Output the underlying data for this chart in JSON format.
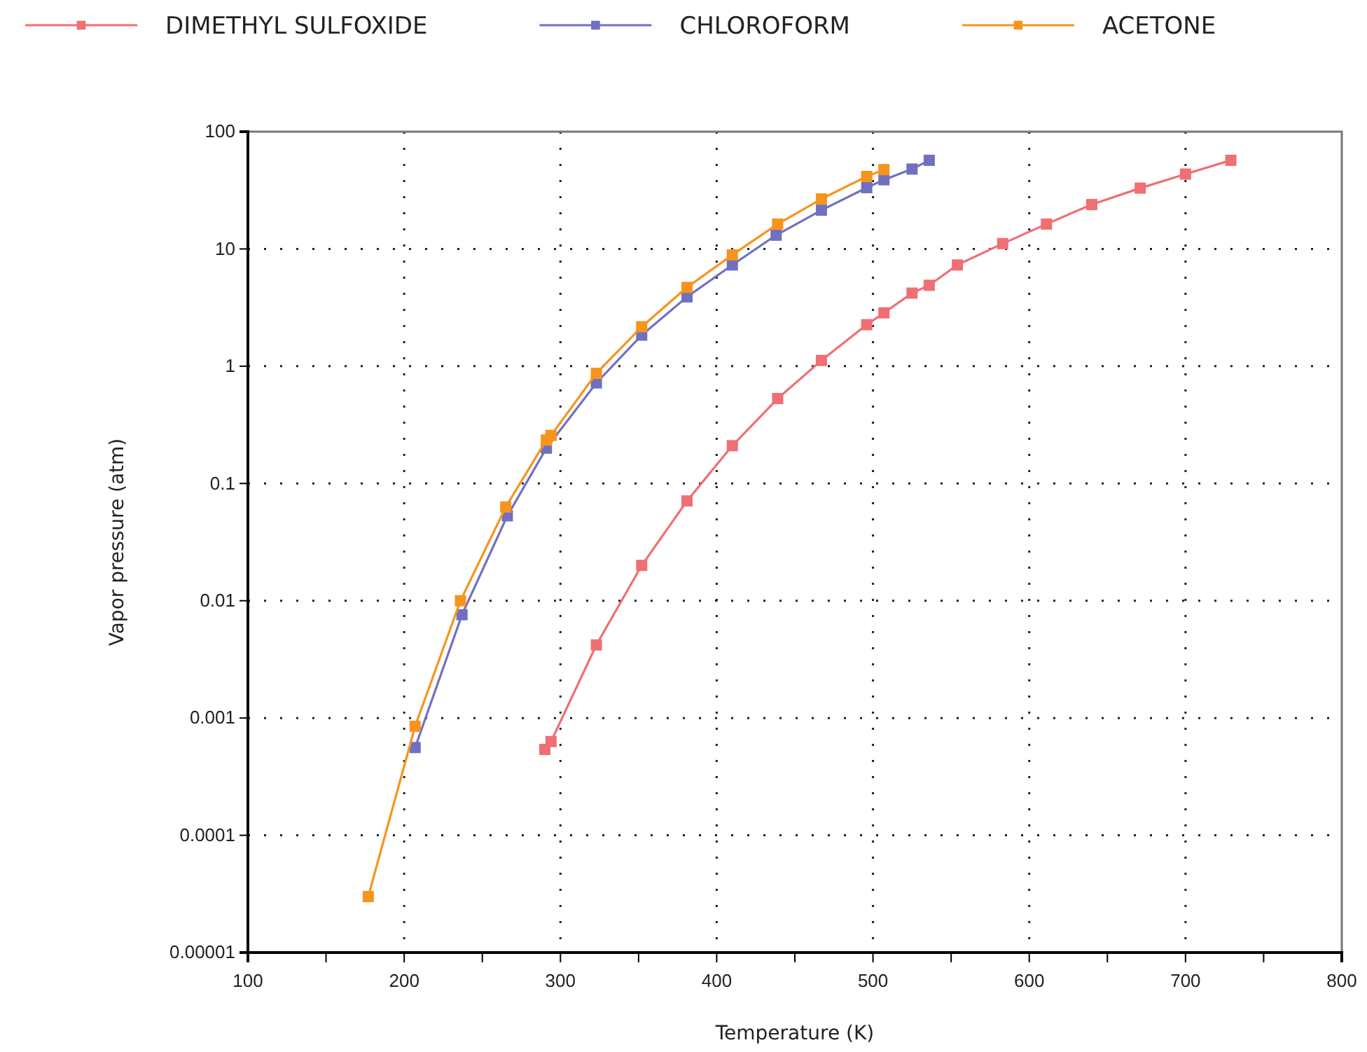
{
  "chart_data": {
    "type": "line",
    "xlabel": "Temperature (K)",
    "ylabel": "Vapor pressure (atm)",
    "log": "y",
    "grid": true,
    "legend": "top",
    "marker": "square",
    "line_style": "solid",
    "xlim": [
      100,
      800
    ],
    "xticks": [
      100,
      {
        "value": 150,
        "label": null
      },
      200,
      {
        "value": 250,
        "label": null
      },
      300,
      {
        "value": 350,
        "label": null
      },
      400,
      {
        "value": 450,
        "label": null
      },
      500,
      {
        "value": 550,
        "label": null
      },
      600,
      {
        "value": 650,
        "label": null
      },
      700,
      {
        "value": 750,
        "label": null
      },
      800
    ],
    "ylim": [
      1e-05,
      100
    ],
    "yticks": [
      {
        "value": 1e-05,
        "label": "0.00001"
      },
      {
        "value": 0.0001,
        "label": "0.0001"
      },
      {
        "value": 0.001,
        "label": "0.001"
      },
      {
        "value": 0.01,
        "label": "0.01"
      },
      {
        "value": 0.1,
        "label": "0.1"
      },
      1,
      10,
      100
    ],
    "series": [
      {
        "name": "DIMETHYL SULFOXIDE",
        "color": "#ef6f73",
        "x": [
          290,
          294,
          323,
          352,
          381,
          410,
          439,
          467,
          496,
          507,
          525,
          536,
          554,
          583,
          611,
          640,
          671,
          700,
          729
        ],
        "values": [
          0.00054,
          0.00063,
          0.0042,
          0.02,
          0.071,
          0.21,
          0.53,
          1.12,
          2.26,
          2.85,
          4.2,
          4.9,
          7.3,
          11.1,
          16.3,
          23.9,
          33,
          43.5,
          57
        ]
      },
      {
        "name": "CHLOROFORM",
        "color": "#7070c0",
        "x": [
          207,
          237,
          266,
          291,
          323,
          352,
          381,
          410,
          438,
          467,
          496,
          507,
          525,
          536
        ],
        "values": [
          0.00056,
          0.0076,
          0.053,
          0.2,
          0.72,
          1.84,
          3.9,
          7.3,
          13.1,
          21.4,
          33.3,
          38.9,
          48,
          57
        ]
      },
      {
        "name": "ACETONE",
        "color": "#f7941d",
        "x": [
          177,
          207,
          236,
          265,
          291,
          294,
          323,
          352,
          381,
          410,
          439,
          467,
          496,
          507
        ],
        "values": [
          3e-05,
          0.00085,
          0.01,
          0.063,
          0.235,
          0.257,
          0.87,
          2.17,
          4.7,
          8.9,
          16.3,
          26.7,
          41.5,
          47.5
        ]
      }
    ]
  }
}
